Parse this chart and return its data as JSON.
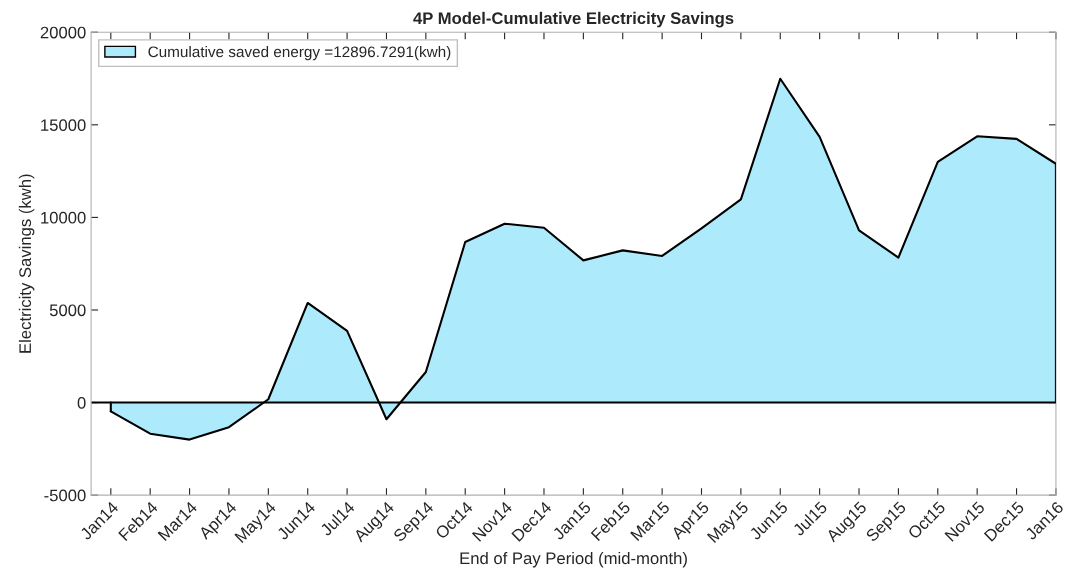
{
  "chart_data": {
    "type": "area",
    "title": "4P Model-Cumulative Electricity Savings",
    "xlabel": "End of Pay Period (mid-month)",
    "ylabel": "Electricity Savings (kwh)",
    "categories": [
      "Jan14",
      "Feb14",
      "Mar14",
      "Apr14",
      "May14",
      "Jun14",
      "Jul14",
      "Aug14",
      "Sep14",
      "Oct14",
      "Nov14",
      "Dec14",
      "Jan15",
      "Feb15",
      "Mar15",
      "Apr15",
      "May15",
      "Jun15",
      "Jul15",
      "Aug15",
      "Sep15",
      "Oct15",
      "Nov15",
      "Dec15",
      "Jan16"
    ],
    "series": [
      {
        "name": "Cumulative saved energy =12896.7291(kwh)",
        "color": "#adebfc",
        "values": [
          -470,
          -1680,
          -2000,
          -1330,
          180,
          5380,
          3870,
          -900,
          1650,
          8670,
          9660,
          9440,
          7680,
          8220,
          7920,
          9410,
          10970,
          17490,
          14350,
          9300,
          7830,
          13000,
          14380,
          14240,
          12897
        ]
      }
    ],
    "ylim": [
      -5000,
      20000
    ],
    "yticks": [
      -5000,
      0,
      5000,
      10000,
      15000,
      20000
    ],
    "ref_lines": [
      {
        "axis": "y",
        "value": 0,
        "color": "#000000"
      }
    ],
    "legend": "top left",
    "grid": false
  }
}
